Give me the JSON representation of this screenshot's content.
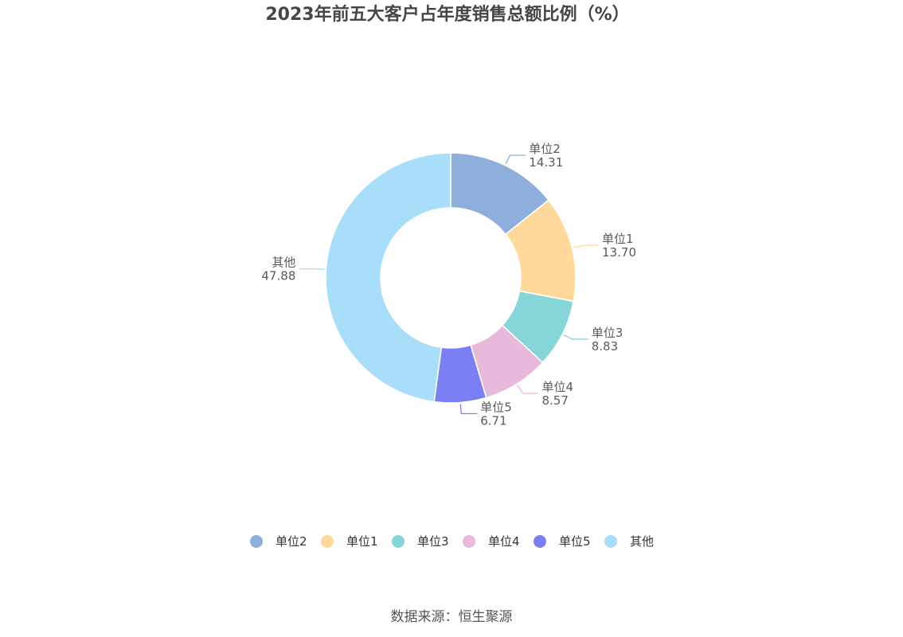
{
  "chart_data": {
    "type": "pie",
    "variant": "donut",
    "title": "2023年前五大客户占年度销售总额比例（%）",
    "slices": [
      {
        "name": "单位2",
        "value": 14.31,
        "label": "14.31",
        "color": "#8eaedc"
      },
      {
        "name": "单位1",
        "value": 13.7,
        "label": "13.70",
        "color": "#ffd99c"
      },
      {
        "name": "单位3",
        "value": 8.83,
        "label": "8.83",
        "color": "#86d6d9"
      },
      {
        "name": "单位4",
        "value": 8.57,
        "label": "8.57",
        "color": "#e8b9da"
      },
      {
        "name": "单位5",
        "value": 6.71,
        "label": "6.71",
        "color": "#7c7ff3"
      },
      {
        "name": "其他",
        "value": 47.88,
        "label": "47.88",
        "color": "#a9defb"
      }
    ],
    "legend_position": "bottom-center",
    "source": "数据来源：恒生聚源"
  }
}
